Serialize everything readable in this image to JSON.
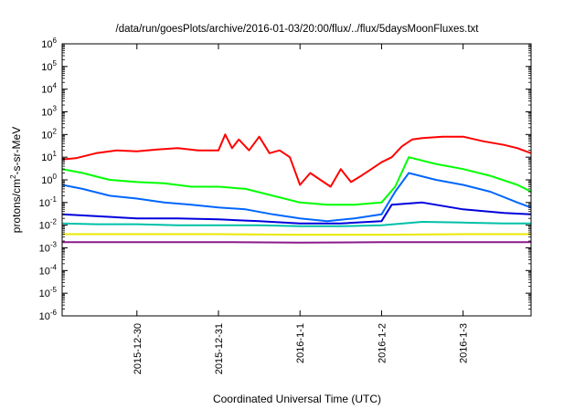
{
  "chart_data": {
    "type": "line",
    "title": "/data/run/goesPlots/archive/2016-01-03/20:00/flux/../flux/5daysMoonFluxes.txt",
    "xlabel": "Coordinated Universal Time (UTC)",
    "ylabel": {
      "prefix": "protons/cm",
      "sup": "2",
      "suffix": "-s-sr-MeV"
    },
    "yscale": "log",
    "ylim": [
      1e-06,
      1000000.0
    ],
    "yticks": [
      {
        "value": 1e-06,
        "exp": "-6"
      },
      {
        "value": 1e-05,
        "exp": "-5"
      },
      {
        "value": 0.0001,
        "exp": "-4"
      },
      {
        "value": 0.001,
        "exp": "-3"
      },
      {
        "value": 0.01,
        "exp": "-2"
      },
      {
        "value": 0.1,
        "exp": "-1"
      },
      {
        "value": 1,
        "exp": "0"
      },
      {
        "value": 10,
        "exp": "1"
      },
      {
        "value": 100,
        "exp": "2"
      },
      {
        "value": 1000,
        "exp": "3"
      },
      {
        "value": 10000,
        "exp": "4"
      },
      {
        "value": 100000,
        "exp": "5"
      },
      {
        "value": 1000000,
        "exp": "6"
      }
    ],
    "xlim": [
      "2015-12-29T02:00",
      "2016-01-03T20:00"
    ],
    "xticks": [
      {
        "value": "2015-12-30T00:00",
        "label": "2015-12-30"
      },
      {
        "value": "2015-12-31T00:00",
        "label": "2015-12-31"
      },
      {
        "value": "2016-01-01T00:00",
        "label": "2016-1-1"
      },
      {
        "value": "2016-01-02T00:00",
        "label": "2016-1-2"
      },
      {
        "value": "2016-01-03T00:00",
        "label": "2016-1-3"
      }
    ],
    "grid": false,
    "legend": "none",
    "series": [
      {
        "color": "#ff0000",
        "x": [
          "2015-12-29T02:00",
          "2015-12-29T06:00",
          "2015-12-29T12:00",
          "2015-12-29T18:00",
          "2015-12-30T00:00",
          "2015-12-30T06:00",
          "2015-12-30T12:00",
          "2015-12-30T18:00",
          "2015-12-31T00:00",
          "2015-12-31T02:00",
          "2015-12-31T04:00",
          "2015-12-31T06:00",
          "2015-12-31T09:00",
          "2015-12-31T12:00",
          "2015-12-31T15:00",
          "2015-12-31T18:00",
          "2015-12-31T21:00",
          "2016-01-01T00:00",
          "2016-01-01T03:00",
          "2016-01-01T06:00",
          "2016-01-01T09:00",
          "2016-01-01T12:00",
          "2016-01-01T15:00",
          "2016-01-01T18:00",
          "2016-01-01T21:00",
          "2016-01-02T00:00",
          "2016-01-02T03:00",
          "2016-01-02T06:00",
          "2016-01-02T09:00",
          "2016-01-02T12:00",
          "2016-01-02T18:00",
          "2016-01-03T00:00",
          "2016-01-03T06:00",
          "2016-01-03T12:00",
          "2016-01-03T16:00",
          "2016-01-03T20:00"
        ],
        "y": [
          8,
          9,
          15,
          20,
          18,
          22,
          25,
          20,
          20,
          100,
          25,
          60,
          20,
          80,
          15,
          20,
          10,
          0.6,
          2,
          1,
          0.5,
          3,
          0.8,
          1.5,
          3,
          6,
          10,
          30,
          60,
          70,
          80,
          80,
          50,
          35,
          25,
          15
        ]
      },
      {
        "color": "#00ff00",
        "x": [
          "2015-12-29T02:00",
          "2015-12-29T08:00",
          "2015-12-29T16:00",
          "2015-12-30T00:00",
          "2015-12-30T08:00",
          "2015-12-30T16:00",
          "2015-12-31T00:00",
          "2015-12-31T08:00",
          "2015-12-31T16:00",
          "2016-01-01T00:00",
          "2016-01-01T08:00",
          "2016-01-01T16:00",
          "2016-01-02T00:00",
          "2016-01-02T04:00",
          "2016-01-02T08:00",
          "2016-01-02T16:00",
          "2016-01-03T00:00",
          "2016-01-03T08:00",
          "2016-01-03T16:00",
          "2016-01-03T20:00"
        ],
        "y": [
          3,
          2,
          1,
          0.8,
          0.7,
          0.5,
          0.5,
          0.4,
          0.2,
          0.1,
          0.08,
          0.08,
          0.1,
          0.5,
          10,
          5,
          3,
          1.5,
          0.6,
          0.3
        ]
      },
      {
        "color": "#0066ff",
        "x": [
          "2015-12-29T02:00",
          "2015-12-29T08:00",
          "2015-12-29T16:00",
          "2015-12-30T00:00",
          "2015-12-30T08:00",
          "2015-12-30T16:00",
          "2015-12-31T00:00",
          "2015-12-31T08:00",
          "2015-12-31T16:00",
          "2016-01-01T00:00",
          "2016-01-01T08:00",
          "2016-01-01T16:00",
          "2016-01-02T00:00",
          "2016-01-02T04:00",
          "2016-01-02T08:00",
          "2016-01-02T16:00",
          "2016-01-03T00:00",
          "2016-01-03T08:00",
          "2016-01-03T16:00",
          "2016-01-03T20:00"
        ],
        "y": [
          0.6,
          0.4,
          0.2,
          0.15,
          0.1,
          0.08,
          0.06,
          0.05,
          0.03,
          0.02,
          0.015,
          0.02,
          0.03,
          0.3,
          2,
          1,
          0.6,
          0.3,
          0.1,
          0.06
        ]
      },
      {
        "color": "#0000dd",
        "x": [
          "2015-12-29T02:00",
          "2015-12-29T12:00",
          "2015-12-30T00:00",
          "2015-12-30T12:00",
          "2015-12-31T00:00",
          "2015-12-31T12:00",
          "2016-01-01T00:00",
          "2016-01-01T12:00",
          "2016-01-02T00:00",
          "2016-01-02T03:00",
          "2016-01-02T12:00",
          "2016-01-03T00:00",
          "2016-01-03T12:00",
          "2016-01-03T20:00"
        ],
        "y": [
          0.03,
          0.025,
          0.02,
          0.02,
          0.018,
          0.015,
          0.012,
          0.012,
          0.015,
          0.08,
          0.1,
          0.05,
          0.035,
          0.03
        ]
      },
      {
        "color": "#00c0a8",
        "x": [
          "2015-12-29T02:00",
          "2015-12-29T12:00",
          "2015-12-30T00:00",
          "2015-12-30T12:00",
          "2015-12-31T00:00",
          "2015-12-31T12:00",
          "2016-01-01T00:00",
          "2016-01-01T12:00",
          "2016-01-02T00:00",
          "2016-01-02T12:00",
          "2016-01-03T00:00",
          "2016-01-03T12:00",
          "2016-01-03T20:00"
        ],
        "y": [
          0.012,
          0.011,
          0.011,
          0.01,
          0.01,
          0.01,
          0.009,
          0.009,
          0.01,
          0.014,
          0.013,
          0.012,
          0.012
        ]
      },
      {
        "color": "#e8e800",
        "x": [
          "2015-12-29T02:00",
          "2015-12-30T00:00",
          "2015-12-31T00:00",
          "2016-01-01T00:00",
          "2016-01-02T00:00",
          "2016-01-03T00:00",
          "2016-01-03T20:00"
        ],
        "y": [
          0.004,
          0.004,
          0.004,
          0.0038,
          0.0038,
          0.004,
          0.004
        ]
      },
      {
        "color": "#8b1a8b",
        "x": [
          "2015-12-29T02:00",
          "2015-12-30T00:00",
          "2015-12-31T00:00",
          "2016-01-01T00:00",
          "2016-01-02T00:00",
          "2016-01-03T00:00",
          "2016-01-03T20:00"
        ],
        "y": [
          0.0018,
          0.0018,
          0.0018,
          0.0017,
          0.0018,
          0.0018,
          0.0018
        ]
      }
    ]
  }
}
